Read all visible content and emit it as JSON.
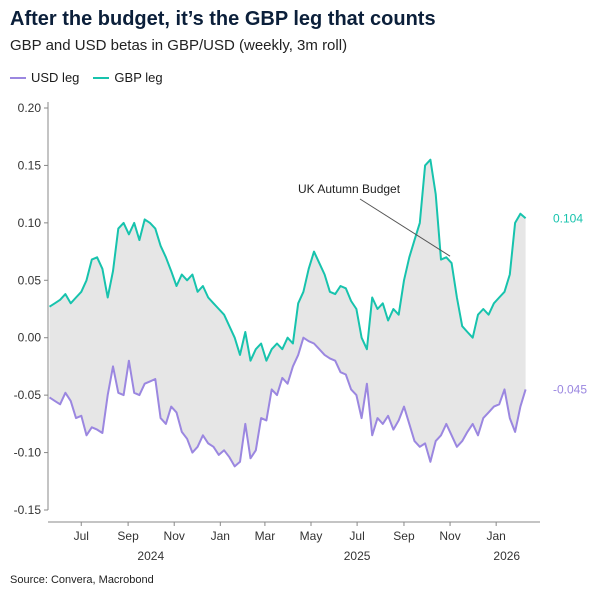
{
  "header": {
    "title": "After the budget, it’s the GBP leg that counts",
    "subtitle": "GBP and USD betas in GBP/USD (weekly, 3m roll)"
  },
  "footer": {
    "source": "Source: Convera, Macrobond"
  },
  "chart_data": {
    "type": "line",
    "title": "After the budget, it’s the GBP leg that counts",
    "subtitle": "GBP and USD betas in GBP/USD (weekly, 3m roll)",
    "xlabel": "",
    "ylabel": "",
    "ylim": [
      -0.15,
      0.2
    ],
    "xlim": [
      "2024-05-18",
      "2026-02-28"
    ],
    "y_ticks": [
      "0.20",
      "0.15",
      "0.10",
      "0.05",
      "0.00",
      "-0.05",
      "-0.10",
      "-0.15"
    ],
    "x_ticks": [
      {
        "label": "Jul",
        "date": "2024-07-01"
      },
      {
        "label": "Sep",
        "date": "2024-09-01"
      },
      {
        "label": "Nov",
        "date": "2024-11-01"
      },
      {
        "label": "Jan",
        "date": "2025-01-01"
      },
      {
        "label": "Mar",
        "date": "2025-03-01"
      },
      {
        "label": "May",
        "date": "2025-05-01"
      },
      {
        "label": "Jul",
        "date": "2025-07-01"
      },
      {
        "label": "Sep",
        "date": "2025-09-01"
      },
      {
        "label": "Nov",
        "date": "2025-11-01"
      },
      {
        "label": "Jan",
        "date": "2026-01-01"
      }
    ],
    "year_labels": [
      {
        "label": "2024",
        "date": "2024-10-01"
      },
      {
        "label": "2025",
        "date": "2025-07-01"
      },
      {
        "label": "2026",
        "date": "2026-01-15"
      }
    ],
    "grid": false,
    "legend": "top-left",
    "shaded_between_series": true,
    "colors": {
      "usd": "#9b87e0",
      "gbp": "#17c3ad",
      "fill": "#e6e6e6"
    },
    "series": [
      {
        "name": "USD leg",
        "color": "#9b87e0",
        "end_label": "-0.045",
        "points": [
          [
            "2024-05-20",
            -0.052
          ],
          [
            "2024-05-27",
            -0.055
          ],
          [
            "2024-06-03",
            -0.058
          ],
          [
            "2024-06-10",
            -0.048
          ],
          [
            "2024-06-17",
            -0.055
          ],
          [
            "2024-06-24",
            -0.07
          ],
          [
            "2024-07-01",
            -0.068
          ],
          [
            "2024-07-08",
            -0.085
          ],
          [
            "2024-07-15",
            -0.078
          ],
          [
            "2024-07-22",
            -0.08
          ],
          [
            "2024-07-29",
            -0.083
          ],
          [
            "2024-08-05",
            -0.05
          ],
          [
            "2024-08-12",
            -0.025
          ],
          [
            "2024-08-19",
            -0.048
          ],
          [
            "2024-08-26",
            -0.05
          ],
          [
            "2024-09-02",
            -0.02
          ],
          [
            "2024-09-09",
            -0.048
          ],
          [
            "2024-09-16",
            -0.05
          ],
          [
            "2024-09-23",
            -0.04
          ],
          [
            "2024-09-30",
            -0.038
          ],
          [
            "2024-10-07",
            -0.036
          ],
          [
            "2024-10-14",
            -0.07
          ],
          [
            "2024-10-21",
            -0.075
          ],
          [
            "2024-10-28",
            -0.06
          ],
          [
            "2024-11-04",
            -0.065
          ],
          [
            "2024-11-11",
            -0.082
          ],
          [
            "2024-11-18",
            -0.088
          ],
          [
            "2024-11-25",
            -0.1
          ],
          [
            "2024-12-02",
            -0.095
          ],
          [
            "2024-12-09",
            -0.085
          ],
          [
            "2024-12-16",
            -0.092
          ],
          [
            "2024-12-23",
            -0.095
          ],
          [
            "2024-12-30",
            -0.102
          ],
          [
            "2025-01-06",
            -0.098
          ],
          [
            "2025-01-13",
            -0.104
          ],
          [
            "2025-01-20",
            -0.112
          ],
          [
            "2025-01-27",
            -0.108
          ],
          [
            "2025-02-03",
            -0.075
          ],
          [
            "2025-02-10",
            -0.105
          ],
          [
            "2025-02-17",
            -0.098
          ],
          [
            "2025-02-24",
            -0.07
          ],
          [
            "2025-03-03",
            -0.072
          ],
          [
            "2025-03-10",
            -0.045
          ],
          [
            "2025-03-17",
            -0.05
          ],
          [
            "2025-03-24",
            -0.035
          ],
          [
            "2025-03-31",
            -0.04
          ],
          [
            "2025-04-07",
            -0.025
          ],
          [
            "2025-04-14",
            -0.015
          ],
          [
            "2025-04-21",
            0.0
          ],
          [
            "2025-04-28",
            -0.003
          ],
          [
            "2025-05-05",
            -0.005
          ],
          [
            "2025-05-12",
            -0.01
          ],
          [
            "2025-05-19",
            -0.015
          ],
          [
            "2025-05-26",
            -0.018
          ],
          [
            "2025-06-02",
            -0.02
          ],
          [
            "2025-06-09",
            -0.03
          ],
          [
            "2025-06-16",
            -0.032
          ],
          [
            "2025-06-23",
            -0.045
          ],
          [
            "2025-06-30",
            -0.05
          ],
          [
            "2025-07-07",
            -0.07
          ],
          [
            "2025-07-14",
            -0.04
          ],
          [
            "2025-07-21",
            -0.085
          ],
          [
            "2025-07-28",
            -0.07
          ],
          [
            "2025-08-04",
            -0.075
          ],
          [
            "2025-08-11",
            -0.068
          ],
          [
            "2025-08-18",
            -0.08
          ],
          [
            "2025-08-25",
            -0.072
          ],
          [
            "2025-09-01",
            -0.06
          ],
          [
            "2025-09-08",
            -0.075
          ],
          [
            "2025-09-15",
            -0.09
          ],
          [
            "2025-09-22",
            -0.095
          ],
          [
            "2025-09-29",
            -0.092
          ],
          [
            "2025-10-06",
            -0.108
          ],
          [
            "2025-10-13",
            -0.09
          ],
          [
            "2025-10-20",
            -0.085
          ],
          [
            "2025-10-27",
            -0.075
          ],
          [
            "2025-11-03",
            -0.085
          ],
          [
            "2025-11-10",
            -0.095
          ],
          [
            "2025-11-17",
            -0.09
          ],
          [
            "2025-11-24",
            -0.082
          ],
          [
            "2025-12-01",
            -0.075
          ],
          [
            "2025-12-08",
            -0.085
          ],
          [
            "2025-12-15",
            -0.07
          ],
          [
            "2025-12-22",
            -0.065
          ],
          [
            "2025-12-29",
            -0.06
          ],
          [
            "2026-01-05",
            -0.058
          ],
          [
            "2026-01-12",
            -0.045
          ],
          [
            "2026-01-19",
            -0.07
          ],
          [
            "2026-01-26",
            -0.082
          ],
          [
            "2026-02-02",
            -0.06
          ],
          [
            "2026-02-09",
            -0.045
          ]
        ]
      },
      {
        "name": "GBP leg",
        "color": "#17c3ad",
        "end_label": "0.104",
        "points": [
          [
            "2024-05-20",
            0.027
          ],
          [
            "2024-05-27",
            0.03
          ],
          [
            "2024-06-03",
            0.033
          ],
          [
            "2024-06-10",
            0.038
          ],
          [
            "2024-06-17",
            0.03
          ],
          [
            "2024-06-24",
            0.035
          ],
          [
            "2024-07-01",
            0.04
          ],
          [
            "2024-07-08",
            0.05
          ],
          [
            "2024-07-15",
            0.068
          ],
          [
            "2024-07-22",
            0.07
          ],
          [
            "2024-07-29",
            0.06
          ],
          [
            "2024-08-05",
            0.035
          ],
          [
            "2024-08-12",
            0.058
          ],
          [
            "2024-08-19",
            0.095
          ],
          [
            "2024-08-26",
            0.1
          ],
          [
            "2024-09-02",
            0.09
          ],
          [
            "2024-09-09",
            0.1
          ],
          [
            "2024-09-16",
            0.085
          ],
          [
            "2024-09-23",
            0.103
          ],
          [
            "2024-09-30",
            0.1
          ],
          [
            "2024-10-07",
            0.095
          ],
          [
            "2024-10-14",
            0.08
          ],
          [
            "2024-10-21",
            0.07
          ],
          [
            "2024-10-28",
            0.058
          ],
          [
            "2024-11-04",
            0.045
          ],
          [
            "2024-11-11",
            0.055
          ],
          [
            "2024-11-18",
            0.05
          ],
          [
            "2024-11-25",
            0.055
          ],
          [
            "2024-12-02",
            0.04
          ],
          [
            "2024-12-09",
            0.045
          ],
          [
            "2024-12-16",
            0.035
          ],
          [
            "2024-12-23",
            0.03
          ],
          [
            "2024-12-30",
            0.025
          ],
          [
            "2025-01-06",
            0.02
          ],
          [
            "2025-01-13",
            0.01
          ],
          [
            "2025-01-20",
            0.0
          ],
          [
            "2025-01-27",
            -0.015
          ],
          [
            "2025-02-03",
            0.005
          ],
          [
            "2025-02-10",
            -0.02
          ],
          [
            "2025-02-17",
            -0.01
          ],
          [
            "2025-02-24",
            -0.005
          ],
          [
            "2025-03-03",
            -0.02
          ],
          [
            "2025-03-10",
            -0.01
          ],
          [
            "2025-03-17",
            -0.005
          ],
          [
            "2025-03-24",
            -0.01
          ],
          [
            "2025-03-31",
            0.0
          ],
          [
            "2025-04-07",
            -0.005
          ],
          [
            "2025-04-14",
            0.03
          ],
          [
            "2025-04-21",
            0.04
          ],
          [
            "2025-04-28",
            0.06
          ],
          [
            "2025-05-05",
            0.075
          ],
          [
            "2025-05-12",
            0.065
          ],
          [
            "2025-05-19",
            0.055
          ],
          [
            "2025-05-26",
            0.04
          ],
          [
            "2025-06-02",
            0.038
          ],
          [
            "2025-06-09",
            0.045
          ],
          [
            "2025-06-16",
            0.043
          ],
          [
            "2025-06-23",
            0.032
          ],
          [
            "2025-06-30",
            0.025
          ],
          [
            "2025-07-07",
            0.0
          ],
          [
            "2025-07-14",
            -0.01
          ],
          [
            "2025-07-21",
            0.035
          ],
          [
            "2025-07-28",
            0.025
          ],
          [
            "2025-08-04",
            0.03
          ],
          [
            "2025-08-11",
            0.015
          ],
          [
            "2025-08-18",
            0.025
          ],
          [
            "2025-08-25",
            0.02
          ],
          [
            "2025-09-01",
            0.05
          ],
          [
            "2025-09-08",
            0.07
          ],
          [
            "2025-09-15",
            0.085
          ],
          [
            "2025-09-22",
            0.1
          ],
          [
            "2025-09-29",
            0.15
          ],
          [
            "2025-10-06",
            0.155
          ],
          [
            "2025-10-13",
            0.125
          ],
          [
            "2025-10-20",
            0.068
          ],
          [
            "2025-10-27",
            0.07
          ],
          [
            "2025-11-03",
            0.065
          ],
          [
            "2025-11-10",
            0.035
          ],
          [
            "2025-11-17",
            0.01
          ],
          [
            "2025-11-24",
            0.005
          ],
          [
            "2025-12-01",
            0.0
          ],
          [
            "2025-12-08",
            0.02
          ],
          [
            "2025-12-15",
            0.025
          ],
          [
            "2025-12-22",
            0.02
          ],
          [
            "2025-12-29",
            0.03
          ],
          [
            "2026-01-05",
            0.035
          ],
          [
            "2026-01-12",
            0.04
          ],
          [
            "2026-01-19",
            0.055
          ],
          [
            "2026-01-26",
            0.1
          ],
          [
            "2026-02-02",
            0.108
          ],
          [
            "2026-02-09",
            0.104
          ]
        ]
      }
    ],
    "annotations": [
      {
        "text": "UK Autumn Budget",
        "date": "2025-11-01",
        "value": 0.071
      }
    ]
  }
}
